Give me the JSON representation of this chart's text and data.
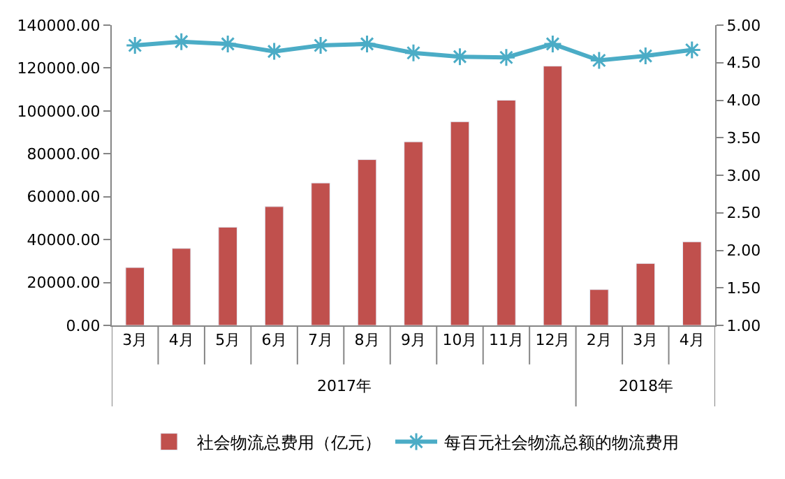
{
  "chart_data": {
    "type": "bar",
    "categories": [
      "3月",
      "4月",
      "5月",
      "6月",
      "7月",
      "8月",
      "9月",
      "10月",
      "11月",
      "12月",
      "2月",
      "3月",
      "4月"
    ],
    "annotations": [
      "2017年",
      "2018年"
    ],
    "series": [
      {
        "name": "社会物流总费用（亿元）",
        "color": "#c0504d",
        "values": [
          27000,
          35900,
          45800,
          55400,
          66400,
          77300,
          85600,
          95000,
          105000,
          120900,
          16700,
          28900,
          39000
        ]
      },
      {
        "name": "每百元社会物流总额的物流费用",
        "type": "line",
        "axis": "y2",
        "color": "#4bacc6",
        "marker": "cross",
        "values": [
          4.73,
          4.78,
          4.75,
          4.65,
          4.73,
          4.75,
          4.63,
          4.58,
          4.57,
          4.75,
          4.53,
          4.59,
          4.67
        ]
      }
    ],
    "ylim": [
      0,
      140000
    ],
    "yticks": [
      {
        "value": 0,
        "label": "0.00"
      },
      {
        "value": 20000,
        "label": "20000.00"
      },
      {
        "value": 40000,
        "label": "40000.00"
      },
      {
        "value": 60000,
        "label": "60000.00"
      },
      {
        "value": 80000,
        "label": "80000.00"
      },
      {
        "value": 100000,
        "label": "100000.00"
      },
      {
        "value": 120000,
        "label": "120000.00"
      },
      {
        "value": 140000,
        "label": "140000.00"
      }
    ],
    "y2lim": [
      1,
      5
    ],
    "y2ticks": [
      {
        "value": 1,
        "label": "1.00"
      },
      {
        "value": 1.5,
        "label": "1.50"
      },
      {
        "value": 2,
        "label": "2.00"
      },
      {
        "value": 2.5,
        "label": "2.50"
      },
      {
        "value": 3,
        "label": "3.00"
      },
      {
        "value": 3.5,
        "label": "3.50"
      },
      {
        "value": 4,
        "label": "4.00"
      },
      {
        "value": 4.5,
        "label": "4.50"
      },
      {
        "value": 5,
        "label": "5.00"
      }
    ],
    "legend": "bottom"
  }
}
